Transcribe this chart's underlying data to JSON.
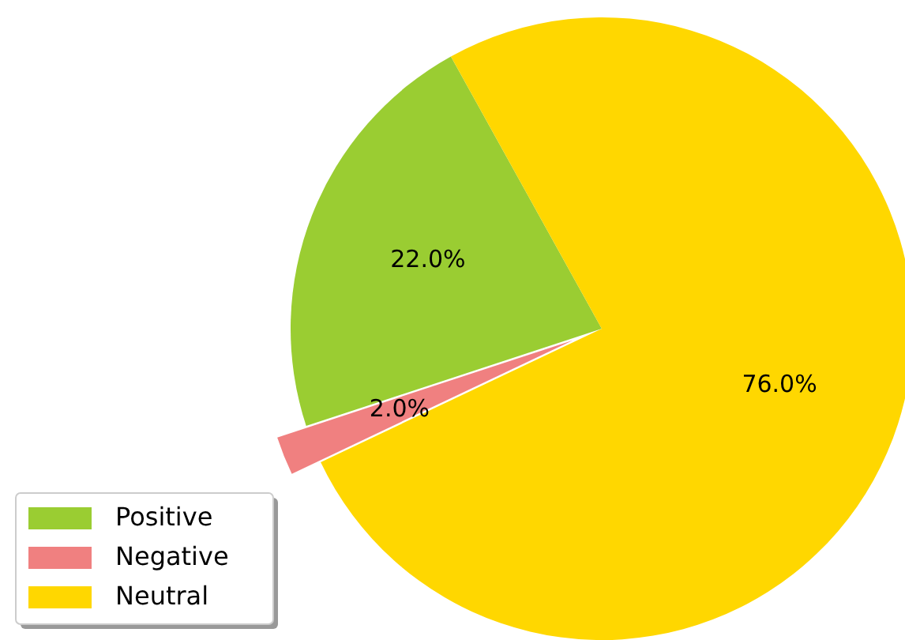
{
  "chart_data": {
    "type": "pie",
    "categories": [
      "Positive",
      "Negative",
      "Neutral"
    ],
    "values": [
      22,
      2,
      76
    ],
    "value_labels": [
      "22.0%",
      "2.0%",
      "76.0%"
    ],
    "colors": [
      "#9acd32",
      "#f08080",
      "#ffd700"
    ],
    "legend": "bottom left"
  }
}
